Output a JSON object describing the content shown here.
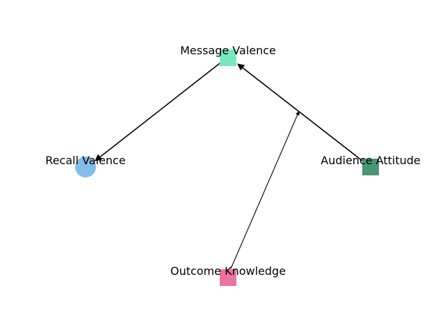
{
  "diagram": {
    "nodes": [
      {
        "id": "message_valence",
        "label": "Message Valence",
        "shape": "square",
        "color": "#77e8bb"
      },
      {
        "id": "recall_valence",
        "label": "Recall Valence",
        "shape": "circle",
        "color": "#82bee8"
      },
      {
        "id": "audience_attitude",
        "label": "Audience Attitude",
        "shape": "square",
        "color": "#4a9677"
      },
      {
        "id": "outcome_knowledge",
        "label": "Outcome Knowledge",
        "shape": "square",
        "color": "#ea74a0"
      }
    ],
    "edges": [
      {
        "from": "message_valence",
        "to": "recall_valence",
        "weight": "strong"
      },
      {
        "from": "audience_attitude",
        "to": "message_valence",
        "weight": "strong"
      },
      {
        "from": "outcome_knowledge",
        "to": "audience_attitude_edge_midpoint",
        "weight": "thin",
        "target_kind": "edge-midpoint"
      }
    ]
  }
}
